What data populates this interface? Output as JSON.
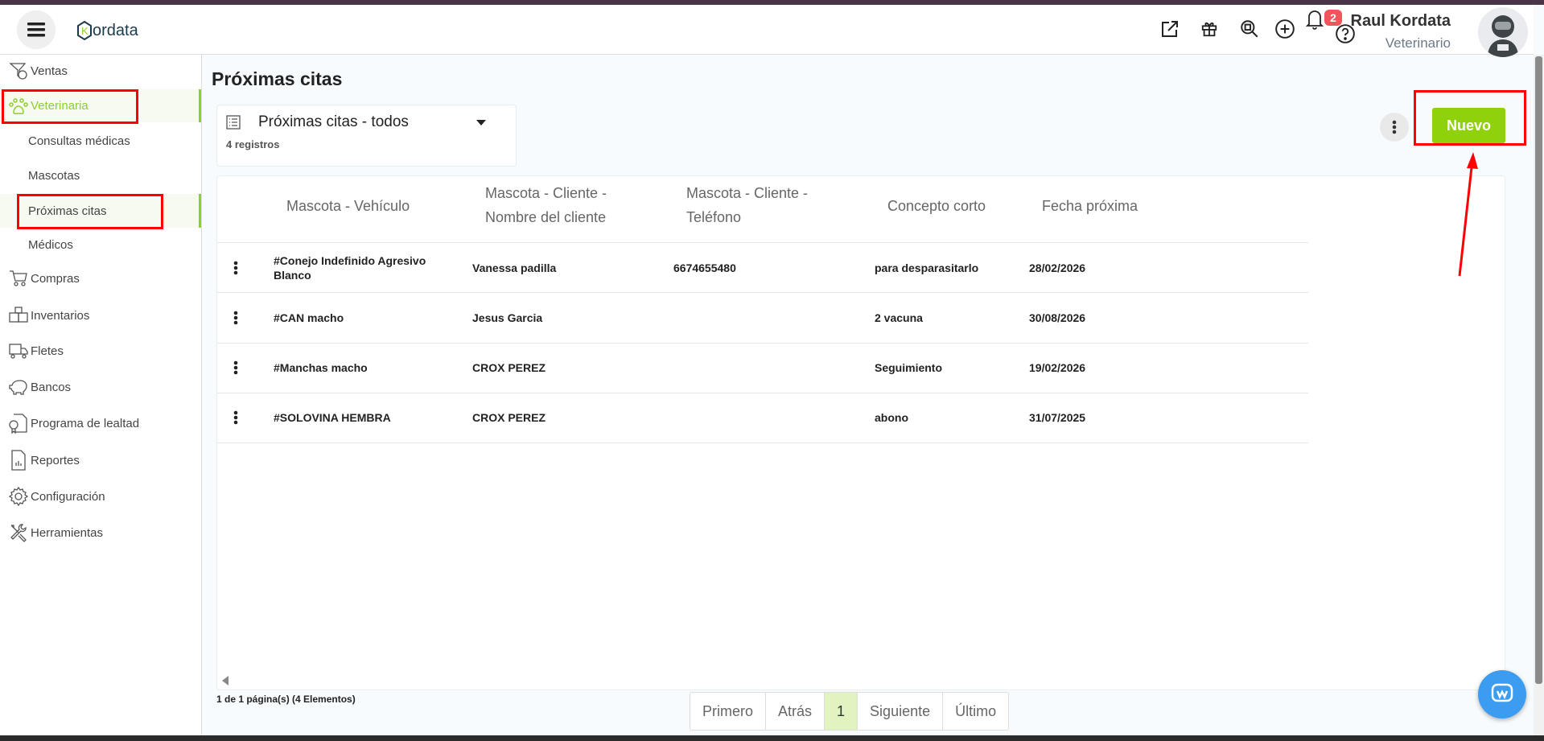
{
  "app": {
    "logo_text": "ordata",
    "logo_letter": "K"
  },
  "header": {
    "icons": [
      "external-link-icon",
      "gift-icon",
      "search-box-icon",
      "plus-circle-icon",
      "bell-icon",
      "help-icon"
    ],
    "notifications": "2",
    "user_name": "Raul Kordata",
    "user_role": "Veterinario"
  },
  "sidebar": {
    "items": [
      {
        "label": "Ventas",
        "icon": "sales-funnel-icon"
      },
      {
        "label": "Veterinaria",
        "icon": "paw-icon",
        "active": true
      },
      {
        "label": "Consultas médicas"
      },
      {
        "label": "Mascotas"
      },
      {
        "label": "Próximas citas",
        "active": true
      },
      {
        "label": "Médicos"
      },
      {
        "label": "Compras",
        "icon": "cart-icon"
      },
      {
        "label": "Inventarios",
        "icon": "boxes-icon"
      },
      {
        "label": "Fletes",
        "icon": "truck-icon"
      },
      {
        "label": "Bancos",
        "icon": "piggy-bank-icon"
      },
      {
        "label": "Programa de lealtad",
        "icon": "certificate-icon"
      },
      {
        "label": "Reportes",
        "icon": "report-icon"
      },
      {
        "label": "Configuración",
        "icon": "gear-icon"
      },
      {
        "label": "Herramientas",
        "icon": "tools-icon"
      }
    ]
  },
  "main": {
    "title": "Próximas citas",
    "view": {
      "label": "Próximas citas - todos",
      "count": "4 registros"
    },
    "new_button": "Nuevo",
    "table": {
      "headers": [
        "Mascota - Vehículo",
        "Mascota - Cliente - Nombre del cliente",
        "Mascota - Cliente - Teléfono",
        "Concepto corto",
        "Fecha próxima"
      ],
      "rows": [
        [
          "#Conejo Indefinido Agresivo Blanco",
          "Vanessa padilla",
          "6674655480",
          "para desparasitarlo",
          "28/02/2026"
        ],
        [
          "#CAN macho",
          "Jesus Garcia",
          "",
          "2 vacuna",
          "30/08/2026"
        ],
        [
          "#Manchas macho",
          "CROX PEREZ",
          "",
          "Seguimiento",
          "19/02/2026"
        ],
        [
          "#SOLOVINA HEMBRA",
          "CROX PEREZ",
          "",
          "abono",
          "31/07/2025"
        ]
      ]
    },
    "pagination": {
      "info": "1 de 1 página(s) (4 Elementos)",
      "buttons": [
        "Primero",
        "Atrás",
        "1",
        "Siguiente",
        "Último"
      ],
      "current": "1"
    }
  },
  "colors": {
    "accent": "#8fd10a",
    "badge": "#f2545b",
    "annotation": "#ff0000",
    "chat": "#3b9cf0"
  }
}
